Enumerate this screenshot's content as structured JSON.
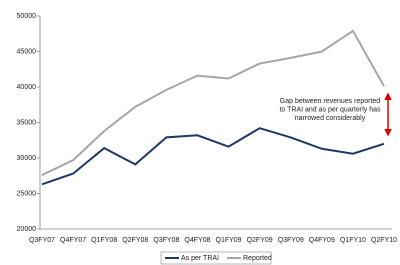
{
  "chart_data": {
    "type": "line",
    "categories": [
      "Q3FY07",
      "Q4FY07",
      "Q1FY08",
      "Q2FY08",
      "Q3FY08",
      "Q4FY08",
      "Q1FY09",
      "Q2FY09",
      "Q3FY09",
      "Q4FY09",
      "Q1FY10",
      "Q2FY10"
    ],
    "series": [
      {
        "name": "As per TRAI",
        "color": "#1f3864",
        "values": [
          26300,
          27800,
          31400,
          29100,
          32900,
          33200,
          31600,
          34200,
          32900,
          31300,
          30600,
          32000
        ]
      },
      {
        "name": "Reported",
        "color": "#a6a6a6",
        "values": [
          27600,
          29700,
          33800,
          37200,
          39600,
          41600,
          41200,
          43300,
          44100,
          45000,
          47900,
          40100
        ]
      }
    ],
    "ylim": [
      20000,
      50000
    ],
    "yticks": [
      20000,
      25000,
      30000,
      35000,
      40000,
      45000,
      50000
    ],
    "grid": false,
    "legend": "bottom",
    "annotation": [
      "Gap between revenues reported",
      "to TRAI and as per quarterly has",
      "narrowed considerably"
    ],
    "annotation_color": "#e00000"
  }
}
